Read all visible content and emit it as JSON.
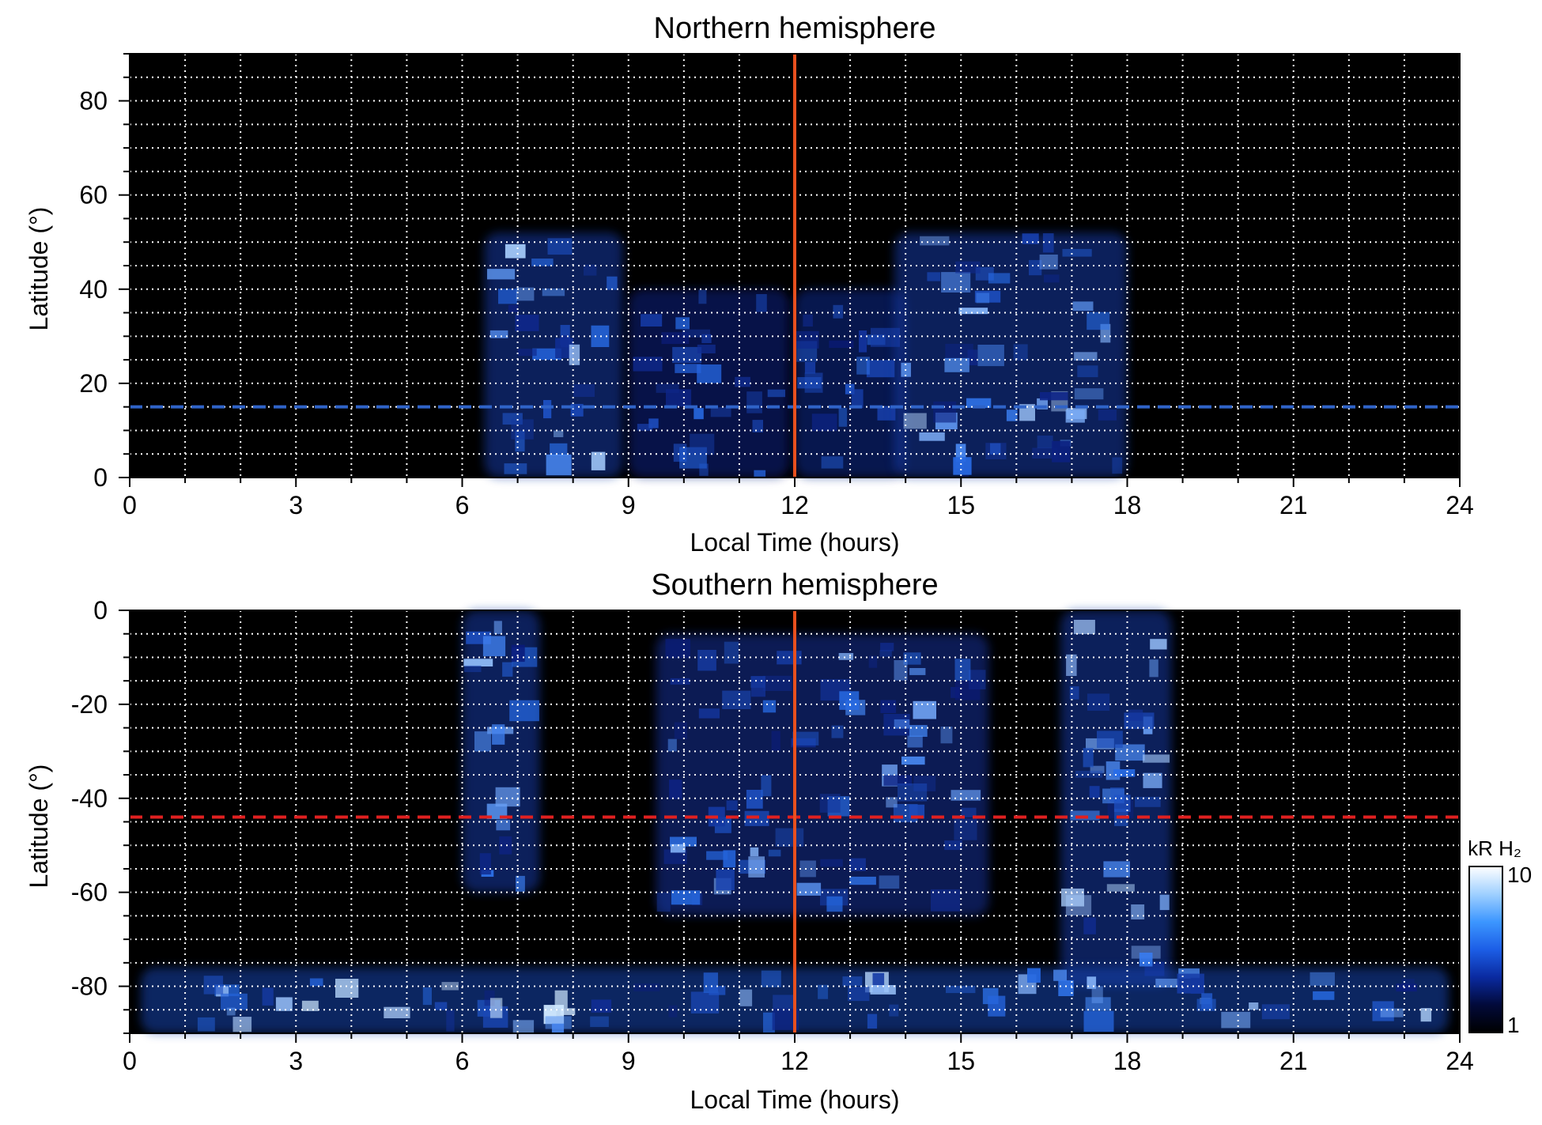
{
  "colors": {
    "background": "#000000",
    "grid": "#ffffff",
    "noon_line": "#e8501e",
    "north_dashed": "#2f63c8",
    "south_dashed": "#e02020",
    "emission_low": "#0a1a7a",
    "emission_mid": "#2a72ee",
    "emission_high": "#cfe8ff"
  },
  "colorbar": {
    "label": "kR H₂",
    "max_label": "10",
    "min_label": "1",
    "scale": "log",
    "range": [
      1,
      10
    ],
    "colors": [
      "#000000",
      "#020a3a",
      "#0a2aa0",
      "#1c5ee6",
      "#3c96ff",
      "#9fd0ff",
      "#ffffff"
    ]
  },
  "chart_data": [
    {
      "type": "heatmap",
      "title": "Northern hemisphere",
      "xlabel": "Local Time (hours)",
      "ylabel": "Latitude (°)",
      "xlim": [
        0,
        24
      ],
      "ylim": [
        0,
        90
      ],
      "x_ticks": [
        "0",
        "3",
        "6",
        "9",
        "12",
        "15",
        "18",
        "21",
        "24"
      ],
      "y_ticks": [
        "0",
        "20",
        "40",
        "60",
        "80"
      ],
      "grid": true,
      "noon_line_x": 12,
      "dashed_line_y": 15,
      "emission_regions": [
        {
          "x": [
            6.4,
            8.9
          ],
          "y": [
            0,
            52
          ],
          "intensity": 6
        },
        {
          "x": [
            9.0,
            11.9
          ],
          "y": [
            0,
            40
          ],
          "intensity": 3
        },
        {
          "x": [
            12.0,
            14.0
          ],
          "y": [
            0,
            40
          ],
          "intensity": 4
        },
        {
          "x": [
            13.8,
            18.0
          ],
          "y": [
            0,
            52
          ],
          "intensity": 6
        }
      ]
    },
    {
      "type": "heatmap",
      "title": "Southern hemisphere",
      "xlabel": "Local Time (hours)",
      "ylabel": "Latitude (°)",
      "xlim": [
        0,
        24
      ],
      "ylim": [
        -90,
        0
      ],
      "x_ticks": [
        "0",
        "3",
        "6",
        "9",
        "12",
        "15",
        "18",
        "21",
        "24"
      ],
      "y_ticks": [
        "0",
        "-20",
        "-40",
        "-60",
        "-80"
      ],
      "grid": true,
      "noon_line_x": 12,
      "dashed_line_y": -44,
      "emission_regions": [
        {
          "x": [
            6.0,
            7.4
          ],
          "y": [
            -60,
            0
          ],
          "intensity": 6
        },
        {
          "x": [
            9.5,
            15.5
          ],
          "y": [
            -65,
            -5
          ],
          "intensity": 5
        },
        {
          "x": [
            16.8,
            18.8
          ],
          "y": [
            -80,
            0
          ],
          "intensity": 6
        },
        {
          "x": [
            0.2,
            23.8
          ],
          "y": [
            -90,
            -76
          ],
          "intensity": 7
        }
      ]
    }
  ]
}
